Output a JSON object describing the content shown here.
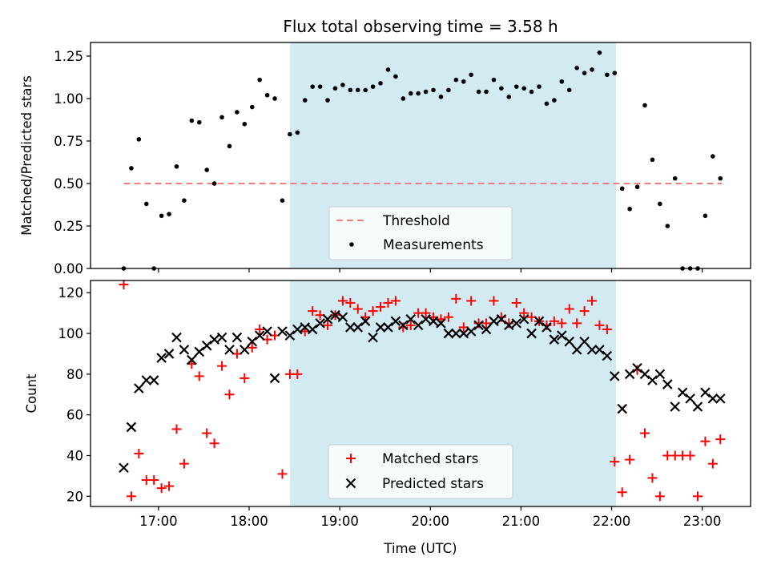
{
  "chart_data": [
    {
      "type": "scatter",
      "title": "Flux total observing time = 3.58 h",
      "ylabel": "Matched/Predicted stars",
      "xlabel": "",
      "ylim": [
        0,
        1.33
      ],
      "yticks": [
        "0.00",
        "0.25",
        "0.50",
        "0.75",
        "1.00",
        "1.25"
      ],
      "grid": false,
      "legend_position": "bottom-center",
      "shaded_interval": {
        "start": "18:27",
        "end": "22:03",
        "color": "#add8e6"
      },
      "threshold": {
        "name": "Threshold",
        "value": 0.5,
        "x_start": "16:37",
        "x_end": "23:13",
        "color": "#f08080"
      },
      "series": [
        {
          "name": "Measurements",
          "color": "#000000",
          "x": [
            "16:37",
            "16:42",
            "16:47",
            "16:52",
            "16:57",
            "17:02",
            "17:07",
            "17:12",
            "17:17",
            "17:22",
            "17:27",
            "17:32",
            "17:37",
            "17:42",
            "17:47",
            "17:52",
            "17:57",
            "18:02",
            "18:07",
            "18:12",
            "18:17",
            "18:22",
            "18:27",
            "18:32",
            "18:37",
            "18:42",
            "18:47",
            "18:52",
            "18:57",
            "19:02",
            "19:07",
            "19:12",
            "19:17",
            "19:22",
            "19:27",
            "19:32",
            "19:37",
            "19:42",
            "19:47",
            "19:52",
            "19:57",
            "20:02",
            "20:07",
            "20:12",
            "20:17",
            "20:22",
            "20:27",
            "20:32",
            "20:37",
            "20:42",
            "20:47",
            "20:52",
            "20:57",
            "21:02",
            "21:07",
            "21:12",
            "21:17",
            "21:22",
            "21:27",
            "21:32",
            "21:37",
            "21:42",
            "21:47",
            "21:52",
            "21:57",
            "22:02",
            "22:07",
            "22:12",
            "22:17",
            "22:22",
            "22:27",
            "22:32",
            "22:37",
            "22:42",
            "22:47",
            "22:52",
            "22:57",
            "23:02",
            "23:07",
            "23:12"
          ],
          "y": [
            0.0,
            0.59,
            0.76,
            0.38,
            0.0,
            0.31,
            0.32,
            0.6,
            0.4,
            0.87,
            0.86,
            0.58,
            0.5,
            0.89,
            0.72,
            0.92,
            0.85,
            0.95,
            1.11,
            1.02,
            1.0,
            0.4,
            0.79,
            0.8,
            0.99,
            1.07,
            1.07,
            0.99,
            1.06,
            1.08,
            1.05,
            1.05,
            1.05,
            1.07,
            1.09,
            1.17,
            1.13,
            1.0,
            1.03,
            1.03,
            1.04,
            1.05,
            1.01,
            1.05,
            1.11,
            1.1,
            1.14,
            1.04,
            1.04,
            1.11,
            1.06,
            1.01,
            1.07,
            1.06,
            1.04,
            1.07,
            0.97,
            0.99,
            1.1,
            1.05,
            1.18,
            1.15,
            1.17,
            1.27,
            1.14,
            1.15,
            0.47,
            0.35,
            0.48,
            0.96,
            0.64,
            0.38,
            0.25,
            0.53,
            0.0,
            0.0,
            0.0,
            0.31,
            0.66,
            0.53
          ]
        }
      ]
    },
    {
      "type": "scatter",
      "title": "",
      "ylabel": "Count",
      "xlabel": "Time (UTC)",
      "ylim": [
        15,
        126
      ],
      "yticks": [
        "20",
        "40",
        "60",
        "80",
        "100",
        "120"
      ],
      "xticks": [
        "17:00",
        "18:00",
        "19:00",
        "20:00",
        "21:00",
        "22:00",
        "23:00"
      ],
      "xlim": [
        "16:15",
        "23:32"
      ],
      "grid": false,
      "legend_position": "bottom-center",
      "shaded_interval": {
        "start": "18:27",
        "end": "22:03",
        "color": "#add8e6"
      },
      "series": [
        {
          "name": "Matched stars",
          "color": "#ff0000",
          "marker": "plus",
          "x": [
            "16:37",
            "16:42",
            "16:47",
            "16:52",
            "16:57",
            "17:02",
            "17:07",
            "17:12",
            "17:17",
            "17:22",
            "17:27",
            "17:32",
            "17:37",
            "17:42",
            "17:47",
            "17:52",
            "17:57",
            "18:02",
            "18:07",
            "18:12",
            "18:17",
            "18:22",
            "18:27",
            "18:32",
            "18:37",
            "18:42",
            "18:47",
            "18:52",
            "18:57",
            "19:02",
            "19:07",
            "19:12",
            "19:17",
            "19:22",
            "19:27",
            "19:32",
            "19:37",
            "19:42",
            "19:47",
            "19:52",
            "19:57",
            "20:02",
            "20:07",
            "20:12",
            "20:17",
            "20:22",
            "20:27",
            "20:32",
            "20:37",
            "20:42",
            "20:47",
            "20:52",
            "20:57",
            "21:02",
            "21:07",
            "21:12",
            "21:17",
            "21:22",
            "21:27",
            "21:32",
            "21:37",
            "21:42",
            "21:47",
            "21:52",
            "21:57",
            "22:02",
            "22:07",
            "22:12",
            "22:17",
            "22:22",
            "22:27",
            "22:32",
            "22:37",
            "22:42",
            "22:47",
            "22:52",
            "22:57",
            "23:02",
            "23:07",
            "23:12"
          ],
          "y": [
            124,
            20,
            41,
            28,
            28,
            24,
            25,
            53,
            36,
            85,
            79,
            51,
            46,
            84,
            70,
            90,
            78,
            93,
            102,
            97,
            99,
            31,
            80,
            80,
            101,
            111,
            109,
            104,
            109,
            116,
            115,
            112,
            108,
            111,
            113,
            115,
            116,
            103,
            104,
            110,
            110,
            108,
            107,
            108,
            117,
            103,
            116,
            105,
            105,
            116,
            108,
            105,
            115,
            110,
            108,
            106,
            104,
            106,
            105,
            112,
            105,
            111,
            116,
            104,
            102,
            37,
            22,
            38,
            82,
            51,
            29,
            20,
            40,
            40,
            40,
            40,
            20,
            47,
            36,
            48
          ],
          "y_note_removed": true
        },
        {
          "name": "Predicted stars",
          "color": "#000000",
          "marker": "x",
          "x": [
            "16:37",
            "16:42",
            "16:47",
            "16:52",
            "16:57",
            "17:02",
            "17:07",
            "17:12",
            "17:17",
            "17:22",
            "17:27",
            "17:32",
            "17:37",
            "17:42",
            "17:47",
            "17:52",
            "17:57",
            "18:02",
            "18:07",
            "18:12",
            "18:17",
            "18:22",
            "18:27",
            "18:32",
            "18:37",
            "18:42",
            "18:47",
            "18:52",
            "18:57",
            "19:02",
            "19:07",
            "19:12",
            "19:17",
            "19:22",
            "19:27",
            "19:32",
            "19:37",
            "19:42",
            "19:47",
            "19:52",
            "19:57",
            "20:02",
            "20:07",
            "20:12",
            "20:17",
            "20:22",
            "20:27",
            "20:32",
            "20:37",
            "20:42",
            "20:47",
            "20:52",
            "20:57",
            "21:02",
            "21:07",
            "21:12",
            "21:17",
            "21:22",
            "21:27",
            "21:32",
            "21:37",
            "21:42",
            "21:47",
            "21:52",
            "21:57",
            "22:02",
            "22:07",
            "22:12",
            "22:17",
            "22:22",
            "22:27",
            "22:32",
            "22:37",
            "22:42",
            "22:47",
            "22:52",
            "22:57",
            "23:02",
            "23:07",
            "23:12"
          ],
          "y": [
            34,
            54,
            73,
            77,
            77,
            88,
            90,
            98,
            92,
            87,
            91,
            94,
            97,
            98,
            92,
            98,
            92,
            96,
            99,
            101,
            78,
            101,
            99,
            102,
            103,
            102,
            105,
            107,
            109,
            108,
            103,
            103,
            106,
            98,
            103,
            103,
            106,
            104,
            107,
            104,
            107,
            106,
            105,
            100,
            100,
            100,
            101,
            104,
            102,
            106,
            107,
            104,
            105,
            107,
            100,
            106,
            103,
            97,
            99,
            96,
            92,
            96,
            92,
            92,
            89,
            79,
            63,
            80,
            83,
            80,
            77,
            80,
            75,
            64,
            71,
            68,
            64,
            71,
            68,
            68
          ]
        }
      ]
    }
  ]
}
